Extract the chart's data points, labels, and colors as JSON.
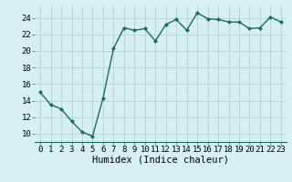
{
  "x": [
    0,
    1,
    2,
    3,
    4,
    5,
    6,
    7,
    8,
    9,
    10,
    11,
    12,
    13,
    14,
    15,
    16,
    17,
    18,
    19,
    20,
    21,
    22,
    23
  ],
  "y": [
    15.0,
    13.5,
    13.0,
    11.5,
    10.2,
    9.7,
    14.3,
    20.3,
    22.8,
    22.5,
    22.7,
    21.2,
    23.2,
    23.8,
    22.5,
    24.6,
    23.9,
    23.8,
    23.5,
    23.5,
    22.7,
    22.8,
    24.1,
    23.5
  ],
  "line_color": "#1a6b5a",
  "marker": "D",
  "marker_size": 2.0,
  "bg_color": "#d6f0f0",
  "grid_color": "#b8d8d8",
  "xlabel": "Humidex (Indice chaleur)",
  "ylim": [
    9,
    25.5
  ],
  "yticks": [
    10,
    12,
    14,
    16,
    18,
    20,
    22,
    24
  ],
  "xlabel_fontsize": 7.5,
  "tick_fontsize": 6.5,
  "linewidth": 1.0
}
